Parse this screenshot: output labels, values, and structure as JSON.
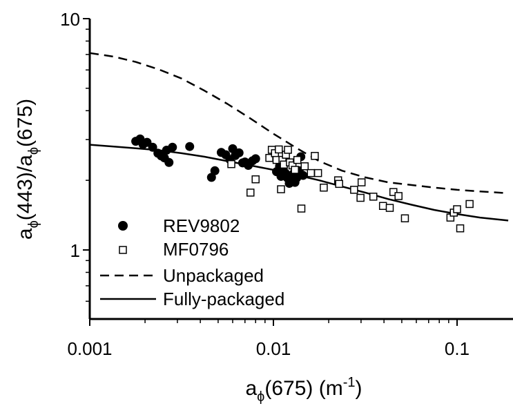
{
  "chart_data": {
    "type": "scatter",
    "x_scale": "log",
    "y_scale": "log",
    "xlim": [
      0.001,
      0.19
    ],
    "ylim": [
      0.5,
      10
    ],
    "grid": false,
    "legend_position": "bottom-left",
    "x_ticks": [
      {
        "value": 0.001,
        "label": "0.001"
      },
      {
        "value": 0.01,
        "label": "0.01"
      },
      {
        "value": 0.1,
        "label": "0.1"
      }
    ],
    "y_ticks": [
      {
        "value": 1,
        "label": "1"
      },
      {
        "value": 10,
        "label": "10"
      }
    ],
    "xlabel": {
      "base": "a",
      "sub": "ϕ",
      "rest": "(675) (m",
      "sup": "-1",
      "close": ")"
    },
    "ylabel": {
      "p1": "a",
      "s1": "ϕ",
      "p2": "(443)/a",
      "s2": "ϕ",
      "p3": "(675)"
    },
    "series": [
      {
        "name": "REV9802",
        "marker": "filled-circle",
        "points": [
          [
            0.00178,
            2.95
          ],
          [
            0.00188,
            3.02
          ],
          [
            0.00195,
            2.86
          ],
          [
            0.00205,
            2.92
          ],
          [
            0.0022,
            2.78
          ],
          [
            0.00235,
            2.62
          ],
          [
            0.00245,
            2.55
          ],
          [
            0.00255,
            2.5
          ],
          [
            0.00262,
            2.7
          ],
          [
            0.0027,
            2.39
          ],
          [
            0.00282,
            2.78
          ],
          [
            0.0035,
            2.8
          ],
          [
            0.0046,
            2.06
          ],
          [
            0.0048,
            2.2
          ],
          [
            0.0052,
            2.64
          ],
          [
            0.0055,
            2.58
          ],
          [
            0.0058,
            2.46
          ],
          [
            0.006,
            2.74
          ],
          [
            0.0062,
            2.56
          ],
          [
            0.0065,
            2.63
          ],
          [
            0.0068,
            2.38
          ],
          [
            0.007,
            2.4
          ],
          [
            0.0073,
            2.32
          ],
          [
            0.0077,
            2.43
          ],
          [
            0.008,
            2.48
          ],
          [
            0.0104,
            2.18
          ],
          [
            0.0108,
            2.3
          ],
          [
            0.011,
            2.08
          ],
          [
            0.0113,
            2.25
          ],
          [
            0.0116,
            2.15
          ],
          [
            0.0119,
            2.05
          ],
          [
            0.0122,
            1.94
          ],
          [
            0.0125,
            2.02
          ],
          [
            0.0128,
            2.13
          ],
          [
            0.0131,
            1.96
          ],
          [
            0.0134,
            2.05
          ],
          [
            0.0138,
            2.2
          ],
          [
            0.0141,
            2.53
          ],
          [
            0.0145,
            2.1
          ]
        ]
      },
      {
        "name": "MF0796",
        "marker": "open-square",
        "points": [
          [
            0.0059,
            2.35
          ],
          [
            0.0075,
            1.77
          ],
          [
            0.008,
            2.02
          ],
          [
            0.0095,
            2.5
          ],
          [
            0.0098,
            2.71
          ],
          [
            0.0102,
            2.62
          ],
          [
            0.0104,
            2.45
          ],
          [
            0.0107,
            2.72
          ],
          [
            0.011,
            1.83
          ],
          [
            0.0112,
            2.45
          ],
          [
            0.0114,
            2.34
          ],
          [
            0.0117,
            2.58
          ],
          [
            0.012,
            2.71
          ],
          [
            0.0123,
            2.39
          ],
          [
            0.0127,
            2.32
          ],
          [
            0.0131,
            2.22
          ],
          [
            0.0135,
            2.45
          ],
          [
            0.0142,
            1.51
          ],
          [
            0.0148,
            2.3
          ],
          [
            0.016,
            2.15
          ],
          [
            0.0168,
            2.55
          ],
          [
            0.0175,
            2.15
          ],
          [
            0.0188,
            1.86
          ],
          [
            0.0225,
            2.0
          ],
          [
            0.0228,
            1.93
          ],
          [
            0.0275,
            1.82
          ],
          [
            0.0298,
            1.68
          ],
          [
            0.0302,
            1.96
          ],
          [
            0.035,
            1.7
          ],
          [
            0.0395,
            1.55
          ],
          [
            0.043,
            1.52
          ],
          [
            0.045,
            1.78
          ],
          [
            0.048,
            1.71
          ],
          [
            0.052,
            1.37
          ],
          [
            0.092,
            1.38
          ],
          [
            0.096,
            1.45
          ],
          [
            0.1,
            1.5
          ],
          [
            0.104,
            1.24
          ],
          [
            0.117,
            1.58
          ]
        ]
      },
      {
        "name": "Unpackaged",
        "style": "dashed",
        "points": [
          [
            0.001,
            7.1
          ],
          [
            0.00135,
            6.85
          ],
          [
            0.00178,
            6.5
          ],
          [
            0.00237,
            6.04
          ],
          [
            0.00316,
            5.51
          ],
          [
            0.00422,
            4.88
          ],
          [
            0.00562,
            4.28
          ],
          [
            0.0075,
            3.7
          ],
          [
            0.01,
            3.18
          ],
          [
            0.01334,
            2.76
          ],
          [
            0.01778,
            2.42
          ],
          [
            0.02371,
            2.2
          ],
          [
            0.03162,
            2.06
          ],
          [
            0.04217,
            1.96
          ],
          [
            0.05623,
            1.91
          ],
          [
            0.075,
            1.86
          ],
          [
            0.1,
            1.82
          ],
          [
            0.1334,
            1.79
          ],
          [
            0.19,
            1.76
          ]
        ]
      },
      {
        "name": "Fully-packaged",
        "style": "solid",
        "points": [
          [
            0.001,
            2.85
          ],
          [
            0.00135,
            2.8
          ],
          [
            0.00178,
            2.75
          ],
          [
            0.00237,
            2.7
          ],
          [
            0.00316,
            2.62
          ],
          [
            0.00422,
            2.53
          ],
          [
            0.00562,
            2.42
          ],
          [
            0.0075,
            2.32
          ],
          [
            0.01,
            2.22
          ],
          [
            0.01334,
            2.11
          ],
          [
            0.01778,
            2.0
          ],
          [
            0.02371,
            1.88
          ],
          [
            0.03162,
            1.77
          ],
          [
            0.04217,
            1.66
          ],
          [
            0.05623,
            1.57
          ],
          [
            0.075,
            1.49
          ],
          [
            0.1,
            1.43
          ],
          [
            0.1334,
            1.38
          ],
          [
            0.19,
            1.34
          ]
        ]
      }
    ]
  }
}
